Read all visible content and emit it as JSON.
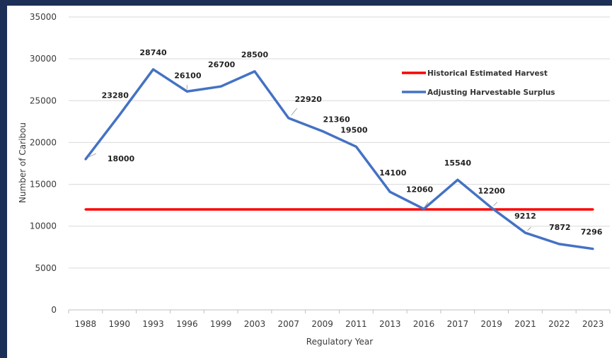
{
  "chart_data": {
    "type": "line",
    "xlabel": "Regulatory Year",
    "ylabel": "Number of Caribou",
    "ylim": [
      0,
      35000
    ],
    "yticks": [
      0,
      5000,
      10000,
      15000,
      20000,
      25000,
      30000,
      35000
    ],
    "categories": [
      "1988",
      "1990",
      "1993",
      "1996",
      "1999",
      "2003",
      "2007",
      "2009",
      "2011",
      "2013",
      "2016",
      "2017",
      "2019",
      "2021",
      "2022",
      "2023"
    ],
    "grid": true,
    "legend_position": "top-right",
    "series": [
      {
        "name": "Historical Estimated Harvest",
        "color": "#ff0000",
        "values": [
          12000,
          12000,
          12000,
          12000,
          12000,
          12000,
          12000,
          12000,
          12000,
          12000,
          12000,
          12000,
          12000,
          12000,
          12000,
          12000
        ],
        "data_labels": false
      },
      {
        "name": "Adjusting Harvestable Surplus",
        "color": "#4472c4",
        "values": [
          18000,
          23280,
          28740,
          26100,
          26700,
          28500,
          22920,
          21360,
          19500,
          14100,
          12060,
          15540,
          12200,
          9212,
          7872,
          7296
        ],
        "data_labels": true
      }
    ]
  },
  "colors": {
    "frame_background": "#1c2f57",
    "gridline": "#d9d9d9"
  }
}
